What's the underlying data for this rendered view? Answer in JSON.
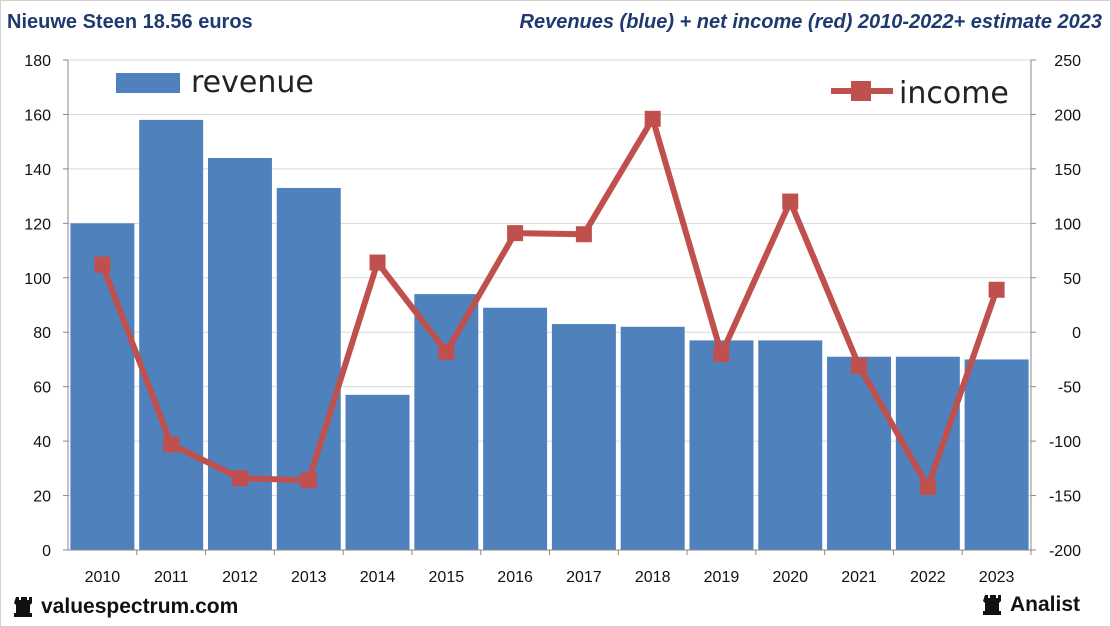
{
  "header": {
    "title_left": "Nieuwe Steen 18.56 euros",
    "title_right": "Revenues (blue) + net income (red) 2010-2022+ estimate 2023"
  },
  "footer": {
    "brand_left": "valuespectrum.com",
    "brand_right": "Analist",
    "icon": "rook-icon"
  },
  "colors": {
    "bar": "#4f81bd",
    "line": "#c0504d",
    "grid": "#d9d9d9",
    "title": "#1f3a6e"
  },
  "chart_data": {
    "type": "bar",
    "title": "Revenues (blue) + net income (red) 2010-2022+ estimate 2023",
    "categories": [
      "2010",
      "2011",
      "2012",
      "2013",
      "2014",
      "2015",
      "2016",
      "2017",
      "2018",
      "2019",
      "2020",
      "2021",
      "2022",
      "2023"
    ],
    "series": [
      {
        "name": "revenue",
        "type": "bar",
        "axis": "left",
        "values": [
          120,
          158,
          144,
          133,
          57,
          94,
          89,
          83,
          82,
          77,
          77,
          71,
          71,
          70
        ]
      },
      {
        "name": "income",
        "type": "line",
        "axis": "right",
        "values": [
          62,
          -103,
          -134,
          -136,
          64,
          -18,
          91,
          90,
          196,
          -20,
          120,
          -31,
          -142,
          39
        ]
      }
    ],
    "left_axis": {
      "min": 0,
      "max": 180,
      "ticks": [
        "0",
        "20",
        "40",
        "60",
        "80",
        "100",
        "120",
        "140",
        "160",
        "180"
      ]
    },
    "right_axis": {
      "min": -200,
      "max": 250,
      "ticks": [
        "-200",
        "-150",
        "-100",
        "-50",
        "0",
        "50",
        "100",
        "150",
        "200",
        "250"
      ]
    },
    "legend": {
      "revenue_label": "revenue",
      "revenue_position": "top-left",
      "income_label": "income",
      "income_position": "top-right"
    },
    "grid": true
  }
}
